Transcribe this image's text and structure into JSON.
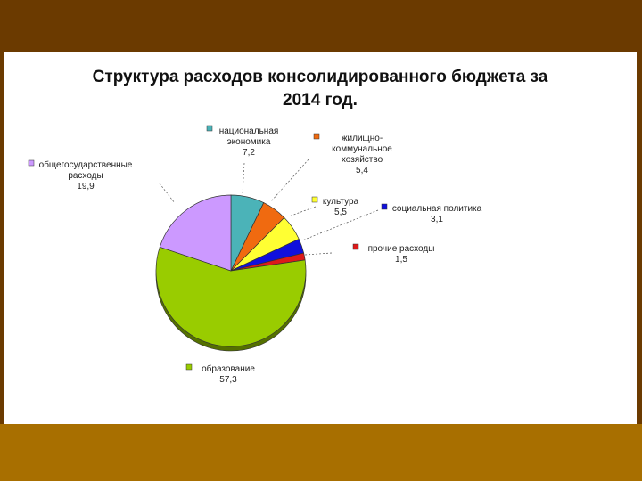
{
  "slide": {
    "title_line1": "Структура расходов консолидированного бюджета за",
    "title_line2": "2014 год."
  },
  "colors": {
    "outer_top": "#6b3a00",
    "outer_bottom": "#a86f00",
    "slide_bg": "#ffffff"
  },
  "chart_data": {
    "type": "pie",
    "title": "Структура расходов консолидированного бюджета за 2014 год.",
    "start_category": "национальная экономика",
    "direction": "clockwise",
    "slices": [
      {
        "name": "национальная экономика",
        "label_lines": [
          "национальная",
          "экономика"
        ],
        "value": 7.2,
        "value_text": "7,2",
        "color": "#4bb3b8"
      },
      {
        "name": "жилищно-коммунальное хозяйство",
        "label_lines": [
          "жилищно-",
          "коммунальное",
          "хозяйство"
        ],
        "value": 5.4,
        "value_text": "5,4",
        "color": "#f06a10"
      },
      {
        "name": "культура",
        "label_lines": [
          "культура"
        ],
        "value": 5.5,
        "value_text": "5,5",
        "color": "#ffff33"
      },
      {
        "name": "социальная политика",
        "label_lines": [
          "социальная политика"
        ],
        "value": 3.1,
        "value_text": "3,1",
        "color": "#1010dd"
      },
      {
        "name": "прочие расходы",
        "label_lines": [
          "прочие расходы"
        ],
        "value": 1.5,
        "value_text": "1,5",
        "color": "#dd1a1a"
      },
      {
        "name": "образование",
        "label_lines": [
          "образование"
        ],
        "value": 57.3,
        "value_text": "57,3",
        "color": "#99cc00"
      },
      {
        "name": "общегосударственные расходы",
        "label_lines": [
          "общегосударственные",
          "расходы"
        ],
        "value": 19.9,
        "value_text": "19,9",
        "color": "#cc99ff"
      }
    ]
  }
}
